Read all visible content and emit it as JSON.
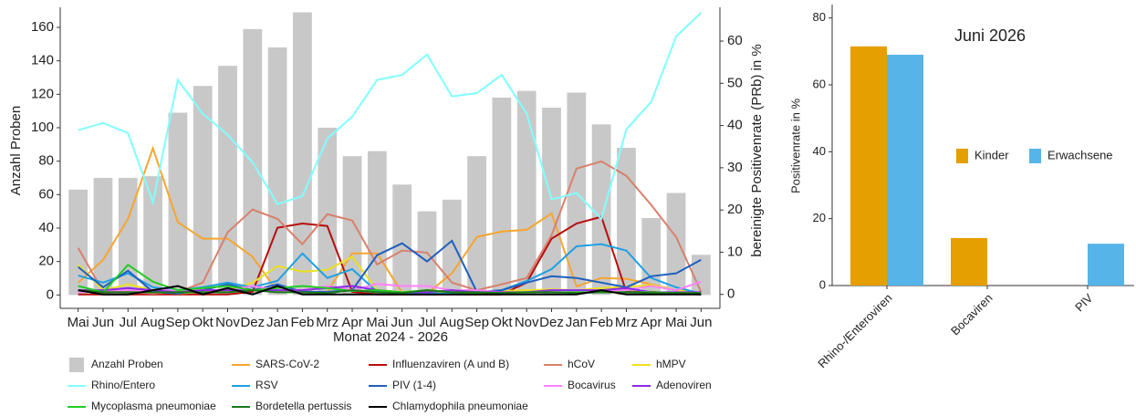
{
  "chart_data": [
    {
      "type": "bar-line",
      "x_label": "Monat 2024 - 2026",
      "y_label": "Anzahl Proben",
      "y2_label": "bereinigte Positivenrate (PRb) in %",
      "categories": [
        "Mai",
        "Jun",
        "Jul",
        "Aug",
        "Sep",
        "Okt",
        "Nov",
        "Dez",
        "Jan",
        "Feb",
        "Mrz",
        "Apr",
        "Mai",
        "Jun",
        "Jul",
        "Aug",
        "Sep",
        "Okt",
        "Nov",
        "Dez",
        "Jan",
        "Feb",
        "Mrz",
        "Apr",
        "Mai",
        "Jun"
      ],
      "ylim": [
        -8,
        172
      ],
      "yticks": [
        0,
        20,
        40,
        60,
        80,
        100,
        120,
        140,
        160
      ],
      "y2lim": [
        -3.3,
        68
      ],
      "y2ticks": [
        0,
        10,
        20,
        30,
        40,
        50,
        60
      ],
      "series": [
        {
          "name": "Anzahl Proben",
          "type": "bar",
          "color": "#c8c8c8",
          "values": [
            63,
            70,
            70,
            71,
            109,
            125,
            137,
            159,
            148,
            169,
            100,
            83,
            86,
            66,
            50,
            57,
            83,
            118,
            122,
            112,
            121,
            102,
            88,
            46,
            61,
            24
          ]
        },
        {
          "name": "SARS-CoV-2",
          "type": "line",
          "axis": "y2",
          "color": "#f7a530",
          "values": [
            2.8,
            8.2,
            17.9,
            34.6,
            17.1,
            13.2,
            13.2,
            8.9,
            0.6,
            0.6,
            0.6,
            9.7,
            9.7,
            0.4,
            0.2,
            5,
            13.6,
            14.9,
            15.3,
            19.2,
            1.9,
            3.9,
            3.7,
            2.4,
            1,
            0.2
          ]
        },
        {
          "name": "Influenzaviren (A und B)",
          "type": "line",
          "axis": "y2",
          "color": "#b80d0d",
          "values": [
            0,
            0,
            0,
            0,
            0,
            0,
            0,
            0.6,
            15.8,
            16.8,
            16.2,
            0.6,
            0,
            0,
            0,
            0,
            0,
            0,
            2.8,
            13.2,
            16.8,
            18.4,
            0.6,
            0.6,
            0.2,
            0
          ]
        },
        {
          "name": "hCoV",
          "type": "line",
          "axis": "y2",
          "color": "#d9806b",
          "values": [
            11,
            0.6,
            0.6,
            0.2,
            0.6,
            2.8,
            14.7,
            20.1,
            17.9,
            11.9,
            19,
            17.5,
            7.1,
            10.4,
            9.9,
            2.8,
            1,
            2.4,
            3.9,
            14,
            29.8,
            31.5,
            28.1,
            21.2,
            13.6,
            0.6
          ]
        },
        {
          "name": "hMPV",
          "type": "line",
          "axis": "y2",
          "color": "#ece020",
          "values": [
            7.1,
            1,
            2.4,
            1,
            0.2,
            0.6,
            1,
            2.8,
            6.7,
            5.4,
            5.8,
            8.9,
            1,
            0.6,
            0.6,
            0.4,
            0.6,
            0.8,
            1,
            1.2,
            1,
            1.5,
            1.8,
            2.2,
            1,
            0.4
          ]
        },
        {
          "name": "Rhino/Entero",
          "type": "line",
          "axis": "y2",
          "color": "#80ffff",
          "values": [
            38.9,
            40.6,
            38.2,
            21.8,
            50.8,
            42.8,
            37.8,
            31.3,
            21.4,
            23.3,
            36.9,
            42.1,
            50.8,
            52,
            56.8,
            46.9,
            47.7,
            52,
            42.8,
            22.5,
            24,
            17.9,
            39.1,
            45.6,
            61.1,
            66.7
          ]
        },
        {
          "name": "RSV",
          "type": "line",
          "axis": "y2",
          "color": "#1ea0e6",
          "values": [
            4.5,
            2.8,
            5,
            1.7,
            1,
            1.7,
            2.8,
            1.7,
            3.2,
            9.7,
            3.9,
            6,
            0.6,
            0.2,
            0.2,
            0.2,
            0.4,
            1,
            3.2,
            6,
            11.4,
            11.9,
            10.4,
            3.9,
            1.7,
            0.2
          ]
        },
        {
          "name": "PIV (1-4)",
          "type": "line",
          "axis": "y2",
          "color": "#1f5fbf",
          "values": [
            6.5,
            1.7,
            5.6,
            0.6,
            0.2,
            1,
            2.4,
            1,
            2.4,
            0.6,
            0.6,
            1,
            9.3,
            12.1,
            7.8,
            12.7,
            0.6,
            1,
            2.8,
            4.3,
            3.9,
            2.8,
            1.7,
            4.3,
            5,
            8.2
          ]
        },
        {
          "name": "Bocavirus",
          "type": "line",
          "axis": "y2",
          "color": "#ff80ff",
          "values": [
            0.5,
            1,
            1,
            1,
            1,
            1,
            1,
            2,
            1,
            1,
            2,
            1,
            2.5,
            2,
            2,
            1,
            1,
            0.5,
            0.5,
            1,
            1,
            1,
            1,
            2,
            1,
            3
          ]
        },
        {
          "name": "Adenoviren",
          "type": "line",
          "axis": "y2",
          "color": "#8a2be2",
          "values": [
            1,
            1,
            1.5,
            1,
            0.5,
            1,
            1,
            1,
            1,
            1,
            1.5,
            2,
            1,
            0.5,
            0.5,
            1,
            0.5,
            0.5,
            0.5,
            1,
            1,
            1,
            1.5,
            0.5,
            0.5,
            0.5
          ]
        },
        {
          "name": "Mycoplasma pneumoniae",
          "type": "line",
          "axis": "y2",
          "color": "#22cc22",
          "values": [
            2,
            0.5,
            7,
            3,
            1,
            1.5,
            2,
            1,
            1.5,
            2,
            1.5,
            0.8,
            1,
            0.5,
            1,
            0.5,
            0.3,
            0.3,
            0.5,
            0.5,
            0.5,
            0.5,
            0.5,
            0.5,
            0.3,
            0.3
          ]
        },
        {
          "name": "Bordetella pertussis",
          "type": "line",
          "axis": "y2",
          "color": "#1a7a1a",
          "values": [
            1,
            0.5,
            0.5,
            0.5,
            0.5,
            0.5,
            0.5,
            1,
            0.5,
            0.5,
            0.3,
            1,
            0.5,
            0.3,
            1,
            0.5,
            0.5,
            0.3,
            0.5,
            0.5,
            0.3,
            0.5,
            0.5,
            0.3,
            0.3,
            0.3
          ]
        },
        {
          "name": "Chlamydophila pneumoniae",
          "type": "line",
          "axis": "y2",
          "color": "#000000",
          "values": [
            1,
            0,
            0,
            1,
            2,
            0,
            1.5,
            0,
            2,
            0,
            0,
            0,
            0,
            0,
            0,
            0,
            0,
            0,
            0,
            0,
            0,
            1,
            0,
            0,
            0,
            0
          ]
        }
      ]
    },
    {
      "type": "bar",
      "annotation": "Juni 2026",
      "y_label": "Positivenrate in %",
      "categories": [
        "Rhino-/Enteroviren",
        "Bocaviren",
        "PIV"
      ],
      "ylim": [
        0,
        84
      ],
      "yticks": [
        0,
        20,
        40,
        60,
        80
      ],
      "series": [
        {
          "name": "Kinder",
          "color": "#e69f00",
          "values": [
            71.5,
            14.2,
            null
          ]
        },
        {
          "name": "Erwachsene",
          "color": "#56b4e9",
          "values": [
            69,
            null,
            12.5
          ]
        }
      ]
    }
  ]
}
